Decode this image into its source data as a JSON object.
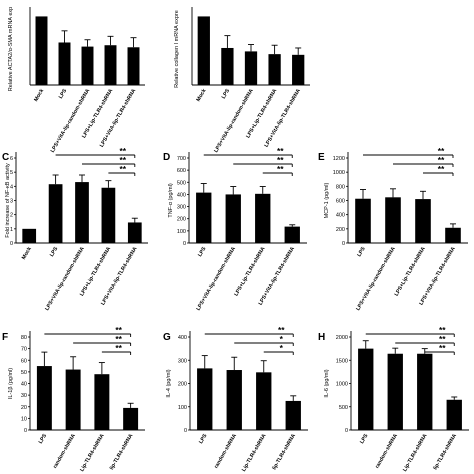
{
  "chart_data": [
    {
      "id": "A",
      "panel_letter": "",
      "type": "bar",
      "ylabel": "Relative ACTA2/α-SMA mRNA exp",
      "yticks": [],
      "ylim": [
        0,
        1.05
      ],
      "categories": [
        "Mock",
        "LPS",
        "LPS+VitA-lip-random-shRNA",
        "LPS+Lip-TLR4-shRNA",
        "LPS+VitA-lip-TLR4-shRNA"
      ],
      "values": [
        1.0,
        0.62,
        0.56,
        0.58,
        0.55
      ],
      "errors": [
        0,
        0.17,
        0.1,
        0.13,
        0.14
      ],
      "significance": []
    },
    {
      "id": "B",
      "panel_letter": "",
      "type": "bar",
      "ylabel": "Relative collagen I mRNA expre",
      "yticks": [],
      "ylim": [
        0,
        1.05
      ],
      "categories": [
        "Mock",
        "LPS",
        "LPS+VitA-lip-random-shRNA",
        "LPS+Lip-TLR4-shRNA",
        "LPS+VitA-lip-TLR4-shRNA"
      ],
      "values": [
        1.0,
        0.54,
        0.49,
        0.45,
        0.44
      ],
      "errors": [
        0,
        0.18,
        0.1,
        0.13,
        0.1
      ],
      "significance": []
    },
    {
      "id": "C",
      "panel_letter": "C",
      "type": "bar",
      "ylabel": "Fold increase of NF-κB activity",
      "yticks": [
        "0",
        "1",
        "2",
        "3",
        "4",
        "5",
        "6"
      ],
      "ylim": [
        0,
        6
      ],
      "categories": [
        "Mock",
        "LPS",
        "LPS+VitA-lip-random-shRNA",
        "LPS+Lip-TLR4-shRNA",
        "LPS+VitA-lip-TLR4-shRNA"
      ],
      "values": [
        1.0,
        4.15,
        4.3,
        3.9,
        1.45
      ],
      "errors": [
        0,
        0.65,
        0.5,
        0.5,
        0.3
      ],
      "significance": [
        {
          "from": 1,
          "to": 4,
          "label": "**"
        },
        {
          "from": 2,
          "to": 4,
          "label": "**"
        },
        {
          "from": 3,
          "to": 4,
          "label": "**"
        }
      ]
    },
    {
      "id": "D",
      "panel_letter": "D",
      "type": "bar",
      "ylabel": "TNF-α (pg/ml)",
      "yticks": [
        "0",
        "100",
        "200",
        "300",
        "400",
        "500",
        "600",
        "700"
      ],
      "ylim": [
        0,
        700
      ],
      "categories": [
        "LPS",
        "LPS+VitA-lip-random-shRNA",
        "LPS+Lip-TLR4-shRNA",
        "LPS+VitA-lip-TLR4-shRNA"
      ],
      "values": [
        415,
        400,
        405,
        135
      ],
      "errors": [
        75,
        65,
        60,
        15
      ],
      "significance": [
        {
          "from": 0,
          "to": 3,
          "label": "**"
        },
        {
          "from": 1,
          "to": 3,
          "label": "**"
        },
        {
          "from": 2,
          "to": 3,
          "label": "**"
        }
      ]
    },
    {
      "id": "E",
      "panel_letter": "E",
      "type": "bar",
      "ylabel": "MCP-1 (pg/ml)",
      "yticks": [
        "0",
        "200",
        "400",
        "600",
        "800",
        "1000",
        "1200"
      ],
      "ylim": [
        0,
        1200
      ],
      "categories": [
        "LPS",
        "LPS+VitA-lip-random-shRNA",
        "LPS+Lip-TLR4-shRNA",
        "LPS+VitA-lip-TLR4-shRNA"
      ],
      "values": [
        625,
        645,
        620,
        215
      ],
      "errors": [
        130,
        120,
        110,
        55
      ],
      "significance": [
        {
          "from": 0,
          "to": 3,
          "label": "**"
        },
        {
          "from": 1,
          "to": 3,
          "label": "**"
        },
        {
          "from": 2,
          "to": 3,
          "label": "**"
        }
      ]
    },
    {
      "id": "F",
      "panel_letter": "F",
      "type": "bar",
      "ylabel": "IL-1β (pg/ml)",
      "yticks": [
        "0",
        "10",
        "20",
        "30",
        "40",
        "50",
        "60",
        "70",
        "80"
      ],
      "ylim": [
        0,
        80
      ],
      "categories": [
        "LPS",
        "random-shRNA",
        "Lip-TLR4-shRNA",
        "lip-TLR4-shRNA"
      ],
      "values": [
        55,
        52,
        48,
        19
      ],
      "errors": [
        12,
        11,
        10,
        4
      ],
      "significance": [
        {
          "from": 0,
          "to": 3,
          "label": "**"
        },
        {
          "from": 1,
          "to": 3,
          "label": "**"
        },
        {
          "from": 2,
          "to": 3,
          "label": "**"
        }
      ]
    },
    {
      "id": "G",
      "panel_letter": "G",
      "type": "bar",
      "ylabel": "IL-4 (pg/ml)",
      "yticks": [
        "0",
        "100",
        "200",
        "300",
        "400"
      ],
      "ylim": [
        0,
        400
      ],
      "categories": [
        "LPS",
        "random-shRNA",
        "Lip-TLR4-shRNA",
        "lip-TLR4-shRNA"
      ],
      "values": [
        265,
        258,
        248,
        125
      ],
      "errors": [
        55,
        55,
        50,
        22
      ],
      "significance": [
        {
          "from": 0,
          "to": 3,
          "label": "**"
        },
        {
          "from": 1,
          "to": 3,
          "label": "*"
        },
        {
          "from": 2,
          "to": 3,
          "label": "*"
        }
      ]
    },
    {
      "id": "H",
      "panel_letter": "H",
      "type": "bar",
      "ylabel": "IL-6 (pg/ml)",
      "yticks": [
        "0",
        "500",
        "1000",
        "1500",
        "2000"
      ],
      "ylim": [
        0,
        2000
      ],
      "categories": [
        "LPS",
        "random-shRNA",
        "Lip-TLR4-shRNA",
        "lip-TLR4-shRNA"
      ],
      "values": [
        1750,
        1640,
        1640,
        650
      ],
      "errors": [
        170,
        120,
        110,
        60
      ],
      "significance": [
        {
          "from": 0,
          "to": 3,
          "label": "**"
        },
        {
          "from": 1,
          "to": 3,
          "label": "**"
        },
        {
          "from": 2,
          "to": 3,
          "label": "**"
        }
      ]
    }
  ]
}
